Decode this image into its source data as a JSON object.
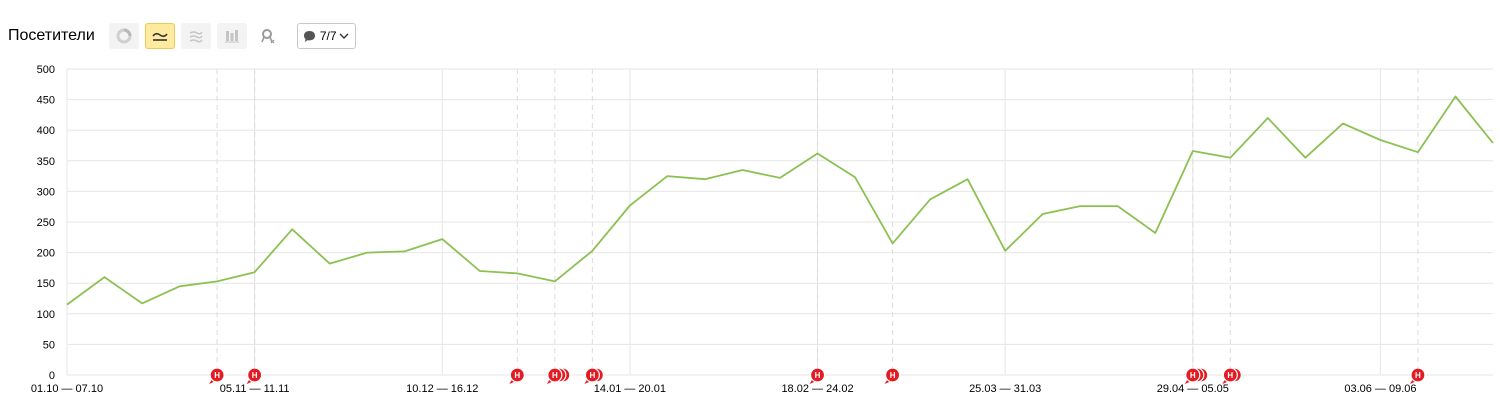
{
  "header": {
    "title": "Посетители",
    "comments_count": "7/7"
  },
  "colors": {
    "line": "#8cc152",
    "marker": "#e31b23",
    "grid": "#e6e6e6",
    "active_button": "#ffeba0"
  },
  "icons": {
    "pie": "pie-chart-icon",
    "line": "line-chart-icon",
    "area": "area-chart-icon",
    "column": "column-chart-icon",
    "map": "map-pin-icon",
    "comment": "comment-icon"
  },
  "chart_data": {
    "type": "line",
    "title": "",
    "xlabel": "",
    "ylabel": "",
    "ylim": [
      0,
      500
    ],
    "yticks": [
      0,
      50,
      100,
      150,
      200,
      250,
      300,
      350,
      400,
      450,
      500
    ],
    "grid": true,
    "x_tick_labels": [
      {
        "index": 0,
        "label": "01.10 — 07.10"
      },
      {
        "index": 5,
        "label": "05.11 — 11.11"
      },
      {
        "index": 10,
        "label": "10.12 — 16.12"
      },
      {
        "index": 15,
        "label": "14.01 — 20.01"
      },
      {
        "index": 20,
        "label": "18.02 — 24.02"
      },
      {
        "index": 25,
        "label": "25.03 — 31.03"
      },
      {
        "index": 30,
        "label": "29.04 — 05.05"
      },
      {
        "index": 35,
        "label": "03.06 — 09.06"
      }
    ],
    "values": [
      115,
      160,
      117,
      145,
      153,
      168,
      238,
      182,
      200,
      202,
      222,
      170,
      166,
      153,
      203,
      277,
      325,
      320,
      335,
      322,
      362,
      323,
      215,
      287,
      320,
      203,
      263,
      276,
      276,
      232,
      366,
      355,
      420,
      355,
      411,
      384,
      364,
      455,
      379
    ],
    "annotations": [
      {
        "index": 4,
        "count": 1,
        "label": "Н"
      },
      {
        "index": 5,
        "count": 1,
        "label": "Н"
      },
      {
        "index": 12,
        "count": 1,
        "label": "Н"
      },
      {
        "index": 13,
        "count": 3,
        "label": "Н"
      },
      {
        "index": 14,
        "count": 2,
        "label": "Н"
      },
      {
        "index": 20,
        "count": 1,
        "label": "Н"
      },
      {
        "index": 22,
        "count": 1,
        "label": "Н"
      },
      {
        "index": 30,
        "count": 3,
        "label": "Н"
      },
      {
        "index": 31,
        "count": 2,
        "label": "Н"
      },
      {
        "index": 36,
        "count": 1,
        "label": "Н"
      }
    ]
  }
}
